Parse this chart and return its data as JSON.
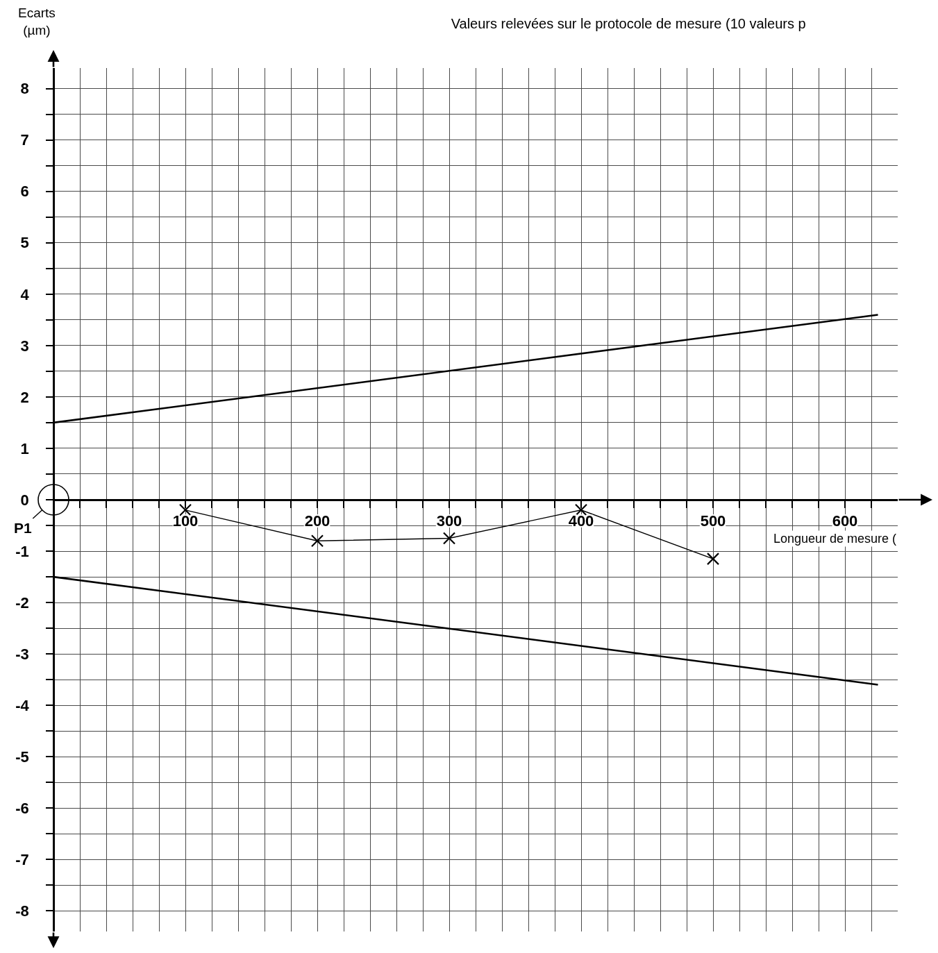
{
  "chart_data": {
    "type": "line",
    "title": "Valeurs relevées sur le protocole de mesure (10 valeurs p",
    "xlabel": "Longueur de mesure (",
    "ylabel": "Ecarts\n(µm)",
    "series": [
      {
        "color": "#000000",
        "x": [
          0,
          625
        ],
        "values": [
          1.5,
          3.6
        ]
      },
      {
        "color": "#000000",
        "x": [
          0,
          625
        ],
        "values": [
          -1.5,
          -3.6
        ]
      },
      {
        "marker": "cross",
        "color": "#000000",
        "x": [
          100,
          200,
          300,
          400,
          500
        ],
        "values": [
          -0.2,
          -0.8,
          -0.75,
          -0.2,
          -1.15
        ]
      },
      {
        "type": "scatter",
        "marker": "circle",
        "color": "#000000",
        "x": [
          0
        ],
        "values": [
          0
        ]
      }
    ],
    "xlim": [
      0,
      640
    ],
    "ylim": [
      -8.4,
      8.4
    ],
    "xticks": [
      {
        "value": 20,
        "label": null
      },
      {
        "value": 40,
        "label": null
      },
      {
        "value": 60,
        "label": null
      },
      {
        "value": 80,
        "label": null
      },
      100,
      {
        "value": 120,
        "label": null
      },
      {
        "value": 140,
        "label": null
      },
      {
        "value": 160,
        "label": null
      },
      {
        "value": 180,
        "label": null
      },
      200,
      {
        "value": 220,
        "label": null
      },
      {
        "value": 240,
        "label": null
      },
      {
        "value": 260,
        "label": null
      },
      {
        "value": 280,
        "label": null
      },
      300,
      {
        "value": 320,
        "label": null
      },
      {
        "value": 340,
        "label": null
      },
      {
        "value": 360,
        "label": null
      },
      {
        "value": 380,
        "label": null
      },
      400,
      {
        "value": 420,
        "label": null
      },
      {
        "value": 440,
        "label": null
      },
      {
        "value": 460,
        "label": null
      },
      {
        "value": 480,
        "label": null
      },
      500,
      {
        "value": 520,
        "label": null
      },
      {
        "value": 540,
        "label": null
      },
      {
        "value": 560,
        "label": null
      },
      {
        "value": 580,
        "label": null
      },
      600,
      {
        "value": 620,
        "label": null
      }
    ],
    "yticks": [
      -8,
      {
        "value": -7.5,
        "label": null
      },
      -7,
      {
        "value": -6.5,
        "label": null
      },
      -6,
      {
        "value": -5.5,
        "label": null
      },
      -5,
      {
        "value": -4.5,
        "label": null
      },
      -4,
      {
        "value": -3.5,
        "label": null
      },
      -3,
      {
        "value": -2.5,
        "label": null
      },
      -2,
      {
        "value": -1.5,
        "label": null
      },
      -1,
      {
        "value": -0.5,
        "label": null
      },
      0,
      {
        "value": 0.5,
        "label": null
      },
      1,
      {
        "value": 1.5,
        "label": null
      },
      2,
      {
        "value": 2.5,
        "label": null
      },
      3,
      {
        "value": 3.5,
        "label": null
      },
      4,
      {
        "value": 4.5,
        "label": null
      },
      5,
      {
        "value": 5.5,
        "label": null
      },
      6,
      {
        "value": 6.5,
        "label": null
      },
      7,
      {
        "value": 7.5,
        "label": null
      },
      8
    ],
    "grid": true,
    "annotations": [
      {
        "text": "P1",
        "x": 0,
        "y": 0
      }
    ]
  }
}
